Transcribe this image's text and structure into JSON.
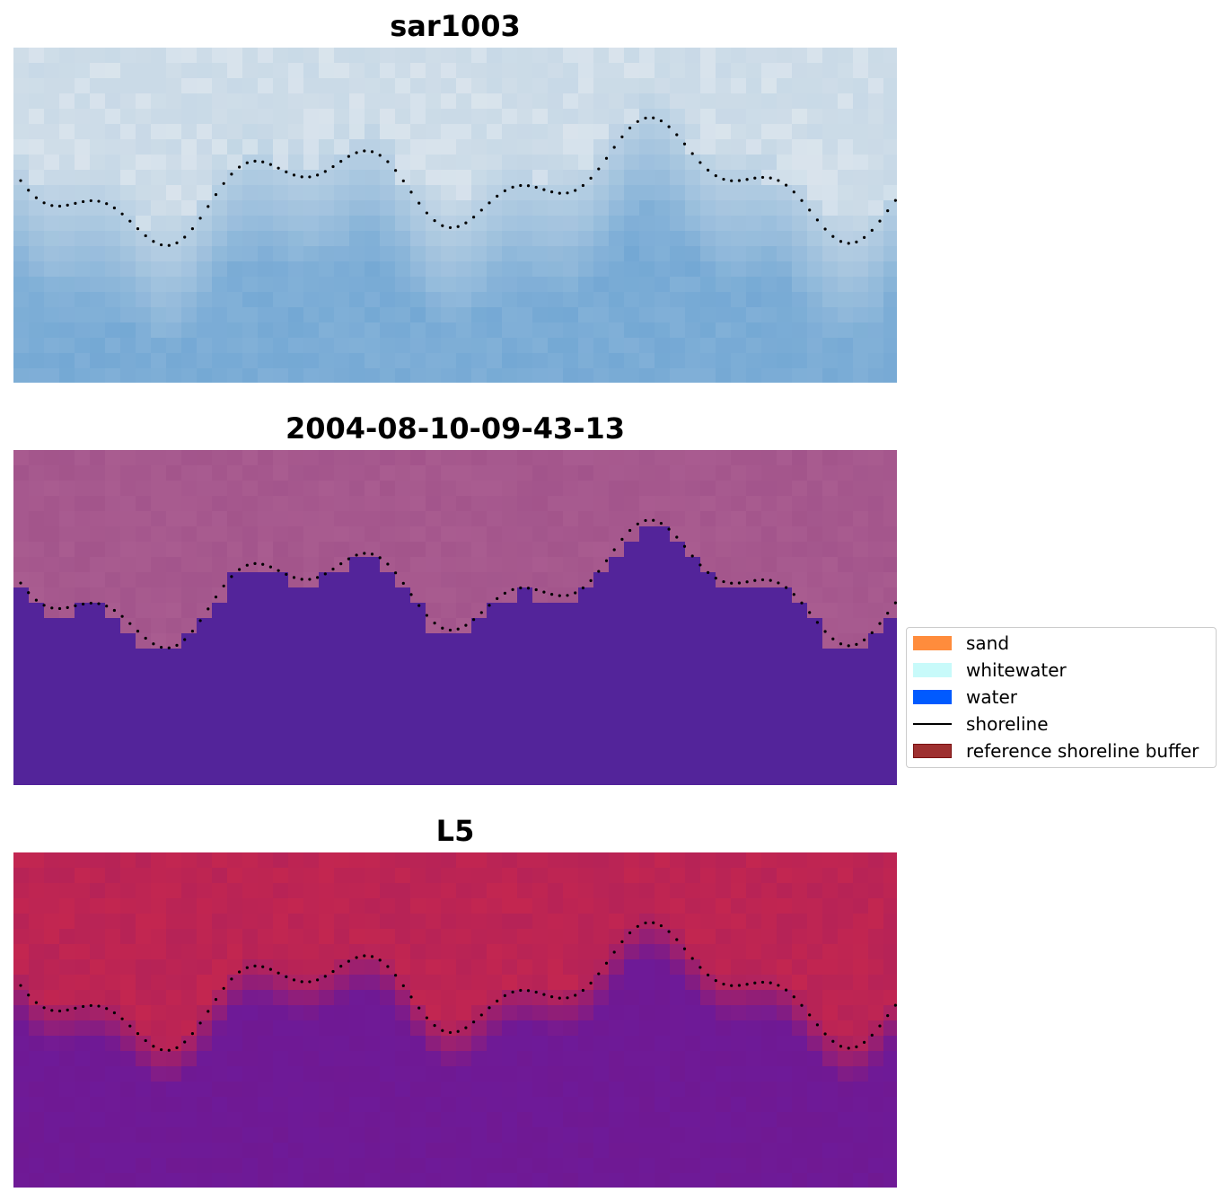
{
  "panels": [
    {
      "title": "sar1003",
      "style": "sar"
    },
    {
      "title": "2004-08-10-09-43-13",
      "style": "class"
    },
    {
      "title": "L5",
      "style": "index"
    }
  ],
  "legend": {
    "items": [
      {
        "label": "sand",
        "kind": "patch",
        "color": "#ff8c3c",
        "edge": "#ff8c3c"
      },
      {
        "label": "whitewater",
        "kind": "patch",
        "color": "#c8fafa",
        "edge": "#c8fafa"
      },
      {
        "label": "water",
        "kind": "patch",
        "color": "#005aff",
        "edge": "#005aff"
      },
      {
        "label": "shoreline",
        "kind": "line",
        "color": "#000000"
      },
      {
        "label": "reference shoreline buffer",
        "kind": "patch",
        "color": "#9e3030",
        "edge": "#7a1010"
      }
    ]
  },
  "colors": {
    "sar_land": "#cfdde8",
    "sar_water": "#74a8d4",
    "class_land": "#a95c90",
    "class_water": "#53249a",
    "index_land": "#c32650",
    "index_water": "#6e1a98",
    "shoreline_dots": "#000000"
  }
}
